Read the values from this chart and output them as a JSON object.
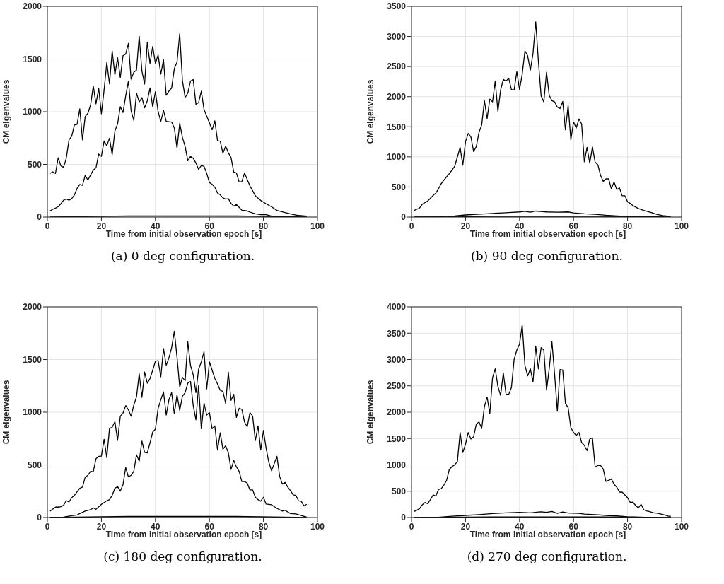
{
  "chart_data": [
    {
      "type": "line",
      "xlabel": "Time from initial observation epoch [s]",
      "ylabel": "CM eigenvalues",
      "annotations": [
        "(a) 0 deg configuration."
      ],
      "xlim": [
        0,
        100
      ],
      "xticks": [
        0,
        20,
        40,
        60,
        80,
        100
      ],
      "ylim": [
        0,
        2000
      ],
      "yticks": [
        0,
        500,
        1000,
        1500,
        2000
      ],
      "grid": true,
      "series": [
        {
          "color": "#000000",
          "x": [
            1,
            2,
            3,
            4,
            5,
            6,
            7,
            8,
            9,
            10,
            11,
            12,
            13,
            14,
            15,
            16,
            17,
            18,
            19,
            20,
            21,
            22,
            23,
            24,
            25,
            26,
            27,
            28,
            29,
            30,
            31,
            32,
            33,
            34,
            35,
            36,
            37,
            38,
            39,
            40,
            41,
            42,
            43,
            44,
            45,
            46,
            47,
            48,
            49,
            50,
            51,
            52,
            53,
            54,
            55,
            56,
            57,
            58,
            59,
            60,
            61,
            62,
            63,
            64,
            65,
            66,
            67,
            68,
            69,
            70,
            71,
            72,
            73,
            75,
            77,
            79,
            81,
            83,
            85,
            87,
            89,
            91,
            93,
            96
          ],
          "values": [
            414,
            430,
            414,
            562,
            486,
            472,
            558,
            733,
            767,
            873,
            880,
            1028,
            733,
            954,
            985,
            1064,
            1244,
            1075,
            1222,
            981,
            1206,
            1467,
            1264,
            1577,
            1350,
            1512,
            1323,
            1532,
            1548,
            1649,
            1309,
            1375,
            1395,
            1716,
            1386,
            1262,
            1660,
            1458,
            1620,
            1458,
            1539,
            1357,
            1494,
            1156,
            1195,
            1224,
            1409,
            1471,
            1741,
            1296,
            1134,
            1177,
            1291,
            1305,
            1071,
            1087,
            1195,
            1021,
            958,
            895,
            828,
            913,
            724,
            720,
            605,
            673,
            610,
            565,
            427,
            418,
            333,
            337,
            418,
            295,
            202,
            157,
            126,
            97,
            63,
            50,
            36,
            25,
            15,
            9
          ]
        },
        {
          "color": "#000000",
          "x": [
            1,
            2,
            3,
            4,
            5,
            6,
            7,
            8,
            9,
            10,
            11,
            12,
            13,
            14,
            15,
            16,
            17,
            18,
            19,
            20,
            21,
            22,
            23,
            24,
            25,
            26,
            27,
            28,
            29,
            30,
            31,
            32,
            33,
            34,
            35,
            36,
            37,
            38,
            39,
            40,
            41,
            42,
            43,
            44,
            46,
            47,
            48,
            49,
            50,
            51,
            52,
            53,
            54,
            55,
            56,
            57,
            58,
            59,
            60,
            61,
            62,
            63,
            64,
            65,
            66,
            67,
            68,
            69,
            70,
            71,
            72,
            73,
            74,
            75,
            77,
            79,
            81,
            83,
            87,
            91,
            96
          ],
          "values": [
            58,
            74,
            85,
            99,
            126,
            160,
            171,
            160,
            175,
            209,
            272,
            310,
            301,
            396,
            351,
            400,
            445,
            468,
            598,
            576,
            722,
            677,
            749,
            592,
            817,
            884,
            1048,
            992,
            1150,
            1289,
            1010,
            918,
            1177,
            1093,
            1134,
            1037,
            1104,
            1224,
            1046,
            1190,
            1003,
            907,
            1012,
            909,
            902,
            846,
            655,
            891,
            756,
            670,
            535,
            576,
            558,
            513,
            452,
            490,
            481,
            414,
            328,
            310,
            283,
            227,
            211,
            182,
            171,
            175,
            130,
            103,
            119,
            92,
            65,
            63,
            58,
            47,
            31,
            22,
            22,
            9,
            4,
            2,
            0
          ]
        },
        {
          "color": "#000000",
          "x": [
            1,
            30,
            50,
            70,
            96
          ],
          "values": [
            0,
            10,
            10,
            10,
            0
          ]
        }
      ]
    },
    {
      "type": "line",
      "xlabel": "Time from initial observation epoch [s]",
      "ylabel": "CM eigenvalues",
      "annotations": [
        "(b) 90 deg configuration."
      ],
      "xlim": [
        0,
        100
      ],
      "xticks": [
        0,
        20,
        40,
        60,
        80,
        100
      ],
      "ylim": [
        0,
        3500
      ],
      "yticks": [
        0,
        500,
        1000,
        1500,
        2000,
        2500,
        3000,
        3500
      ],
      "grid": true,
      "series": [
        {
          "color": "#000000",
          "x": [
            1,
            3,
            4,
            5,
            6,
            8,
            9,
            10,
            11,
            12,
            14,
            15,
            16,
            18,
            19,
            20,
            21,
            22,
            23,
            24,
            25,
            26,
            27,
            28,
            29,
            30,
            31,
            32,
            33,
            34,
            35,
            36,
            37,
            38,
            39,
            40,
            41,
            42,
            43,
            44,
            45,
            46,
            47,
            48,
            49,
            50,
            51,
            52,
            53,
            54,
            55,
            56,
            57,
            58,
            59,
            60,
            61,
            62,
            63,
            64,
            65,
            66,
            67,
            68,
            69,
            70,
            71,
            72,
            73,
            74,
            75,
            76,
            77,
            78,
            79,
            80,
            81,
            82,
            84,
            86,
            89,
            91,
            93,
            96
          ],
          "values": [
            110,
            150,
            213,
            240,
            268,
            358,
            398,
            469,
            555,
            614,
            720,
            780,
            843,
            1157,
            862,
            1252,
            1390,
            1331,
            1087,
            1173,
            1409,
            1531,
            1933,
            1638,
            1961,
            1913,
            2256,
            1756,
            2110,
            2287,
            2260,
            2307,
            2118,
            2110,
            2417,
            2118,
            2374,
            2760,
            2681,
            2437,
            2720,
            3244,
            2583,
            2012,
            1913,
            2406,
            2020,
            1933,
            1913,
            1827,
            1803,
            1921,
            1449,
            1854,
            1283,
            1579,
            1480,
            1630,
            1547,
            917,
            1157,
            898,
            1165,
            909,
            870,
            693,
            594,
            634,
            634,
            469,
            583,
            457,
            484,
            354,
            354,
            252,
            228,
            189,
            142,
            110,
            71,
            43,
            25,
            10
          ]
        },
        {
          "color": "#000000",
          "x": [
            1,
            10,
            16,
            20,
            24,
            28,
            32,
            34,
            36,
            40,
            42,
            44,
            46,
            50,
            54,
            58,
            60,
            64,
            68,
            72,
            76,
            80,
            86,
            96
          ],
          "values": [
            0,
            5,
            20,
            35,
            45,
            55,
            65,
            70,
            75,
            85,
            95,
            80,
            100,
            85,
            80,
            85,
            70,
            55,
            45,
            30,
            20,
            10,
            5,
            0
          ]
        },
        {
          "color": "#000000",
          "x": [
            1,
            30,
            50,
            70,
            96
          ],
          "values": [
            0,
            10,
            10,
            10,
            0
          ]
        }
      ]
    },
    {
      "type": "line",
      "xlabel": "Time from initial observation epoch [s]",
      "ylabel": "CM eigenvalues",
      "annotations": [
        "(c) 180 deg configuration."
      ],
      "xlim": [
        0,
        100
      ],
      "xticks": [
        0,
        20,
        40,
        60,
        80,
        100
      ],
      "ylim": [
        0,
        2000
      ],
      "yticks": [
        0,
        500,
        1000,
        1500,
        2000
      ],
      "grid": true,
      "series": [
        {
          "color": "#000000",
          "x": [
            1,
            2,
            3,
            4,
            5,
            6,
            7,
            8,
            9,
            10,
            11,
            12,
            13,
            14,
            15,
            16,
            17,
            18,
            19,
            20,
            21,
            22,
            23,
            24,
            25,
            26,
            27,
            28,
            29,
            30,
            31,
            32,
            33,
            34,
            35,
            36,
            37,
            38,
            39,
            40,
            41,
            42,
            43,
            44,
            45,
            46,
            47,
            48,
            49,
            50,
            51,
            52,
            53,
            54,
            55,
            56,
            57,
            58,
            59,
            60,
            61,
            62,
            63,
            64,
            65,
            66,
            67,
            68,
            69,
            70,
            71,
            72,
            73,
            74,
            75,
            76,
            77,
            78,
            79,
            80,
            81,
            82,
            83,
            84,
            85,
            86,
            87,
            88,
            89,
            90,
            91,
            92,
            93,
            94,
            95,
            96
          ],
          "values": [
            61,
            81,
            99,
            99,
            103,
            117,
            161,
            148,
            188,
            211,
            244,
            278,
            289,
            383,
            401,
            439,
            435,
            558,
            581,
            583,
            742,
            570,
            845,
            857,
            910,
            733,
            962,
            991,
            1063,
            1022,
            962,
            1067,
            1146,
            1365,
            1141,
            1381,
            1276,
            1320,
            1399,
            1484,
            1489,
            1336,
            1605,
            1444,
            1516,
            1612,
            1769,
            1523,
            1238,
            1332,
            1298,
            1668,
            1444,
            1354,
            1186,
            1410,
            1478,
            1574,
            1220,
            1478,
            1399,
            1320,
            1269,
            1208,
            1197,
            1085,
            1381,
            1112,
            1170,
            951,
            1038,
            1027,
            906,
            861,
            996,
            962,
            731,
            870,
            641,
            827,
            655,
            525,
            444,
            513,
            581,
            390,
            318,
            334,
            289,
            256,
            215,
            211,
            159,
            155,
            110,
            126
          ]
        },
        {
          "color": "#000000",
          "x": [
            1,
            6,
            9,
            11,
            12,
            14,
            16,
            17,
            18,
            20,
            22,
            23,
            24,
            25,
            26,
            27,
            28,
            29,
            30,
            31,
            32,
            33,
            34,
            35,
            36,
            37,
            38,
            39,
            40,
            41,
            42,
            43,
            44,
            45,
            46,
            47,
            48,
            49,
            50,
            51,
            52,
            53,
            54,
            55,
            56,
            57,
            58,
            59,
            60,
            61,
            62,
            63,
            64,
            65,
            66,
            67,
            68,
            69,
            70,
            71,
            72,
            73,
            74,
            75,
            76,
            77,
            78,
            79,
            80,
            81,
            83,
            85,
            87,
            88,
            90,
            92,
            94,
            96
          ],
          "values": [
            0,
            4,
            18,
            25,
            38,
            61,
            74,
            92,
            78,
            126,
            159,
            170,
            211,
            278,
            294,
            251,
            312,
            475,
            386,
            401,
            439,
            596,
            536,
            726,
            619,
            614,
            709,
            812,
            839,
            1036,
            1118,
            1193,
            973,
            1118,
            1186,
            984,
            1164,
            1018,
            1152,
            1186,
            1276,
            1291,
            1063,
            928,
            1253,
            843,
            1085,
            973,
            996,
            843,
            870,
            641,
            805,
            648,
            682,
            614,
            457,
            542,
            480,
            439,
            341,
            341,
            327,
            262,
            262,
            193,
            170,
            155,
            193,
            128,
            121,
            87,
            61,
            69,
            38,
            34,
            20,
            4
          ]
        },
        {
          "color": "#000000",
          "x": [
            1,
            30,
            50,
            70,
            96
          ],
          "values": [
            0,
            10,
            10,
            10,
            0
          ]
        }
      ]
    },
    {
      "type": "line",
      "xlabel": "Time from initial observation epoch [s]",
      "ylabel": "CM eigenvalues",
      "annotations": [
        "(d) 270 deg configuration."
      ],
      "xlim": [
        0,
        100
      ],
      "xticks": [
        0,
        20,
        40,
        60,
        80,
        100
      ],
      "ylim": [
        0,
        4000
      ],
      "yticks": [
        0,
        500,
        1000,
        1500,
        2000,
        2500,
        3000,
        3500,
        4000
      ],
      "grid": true,
      "series": [
        {
          "color": "#000000",
          "x": [
            1,
            2,
            3,
            4,
            5,
            6,
            7,
            8,
            9,
            10,
            11,
            12,
            13,
            14,
            15,
            16,
            17,
            18,
            19,
            20,
            21,
            22,
            23,
            24,
            25,
            26,
            27,
            28,
            29,
            30,
            31,
            32,
            33,
            34,
            35,
            36,
            37,
            38,
            39,
            40,
            41,
            42,
            43,
            44,
            45,
            46,
            47,
            48,
            49,
            50,
            51,
            52,
            53,
            54,
            55,
            56,
            57,
            58,
            59,
            60,
            61,
            62,
            63,
            64,
            65,
            66,
            67,
            68,
            69,
            70,
            71,
            72,
            73,
            74,
            75,
            76,
            77,
            78,
            79,
            80,
            81,
            82,
            83,
            84,
            85,
            86,
            87,
            88,
            89,
            90,
            91,
            93,
            95,
            96
          ],
          "values": [
            116,
            139,
            170,
            242,
            286,
            264,
            340,
            430,
            407,
            532,
            550,
            617,
            707,
            913,
            966,
            1002,
            1065,
            1615,
            1235,
            1391,
            1615,
            1490,
            1535,
            1772,
            1817,
            1691,
            2107,
            2286,
            1973,
            2653,
            2823,
            2488,
            2318,
            2747,
            2344,
            2340,
            2465,
            3002,
            3181,
            3293,
            3660,
            2890,
            2689,
            2823,
            2577,
            3257,
            2823,
            3226,
            3181,
            2421,
            2823,
            3338,
            2711,
            2018,
            2810,
            2801,
            2166,
            2085,
            1705,
            1615,
            1557,
            1615,
            1423,
            1369,
            1271,
            1490,
            1512,
            957,
            989,
            989,
            922,
            685,
            707,
            734,
            631,
            577,
            483,
            483,
            430,
            376,
            286,
            295,
            228,
            183,
            251,
            148,
            125,
            116,
            100,
            85,
            81,
            60,
            30,
            20
          ]
        },
        {
          "color": "#000000",
          "x": [
            1,
            10,
            15,
            20,
            25,
            30,
            35,
            40,
            44,
            48,
            50,
            52,
            54,
            56,
            58,
            62,
            64,
            68,
            72,
            76,
            80,
            86,
            96
          ],
          "values": [
            0,
            5,
            25,
            40,
            55,
            75,
            90,
            100,
            90,
            110,
            100,
            115,
            80,
            105,
            85,
            80,
            65,
            55,
            40,
            30,
            15,
            5,
            0
          ]
        },
        {
          "color": "#000000",
          "x": [
            1,
            30,
            50,
            70,
            96
          ],
          "values": [
            0,
            10,
            10,
            10,
            0
          ]
        }
      ]
    }
  ]
}
